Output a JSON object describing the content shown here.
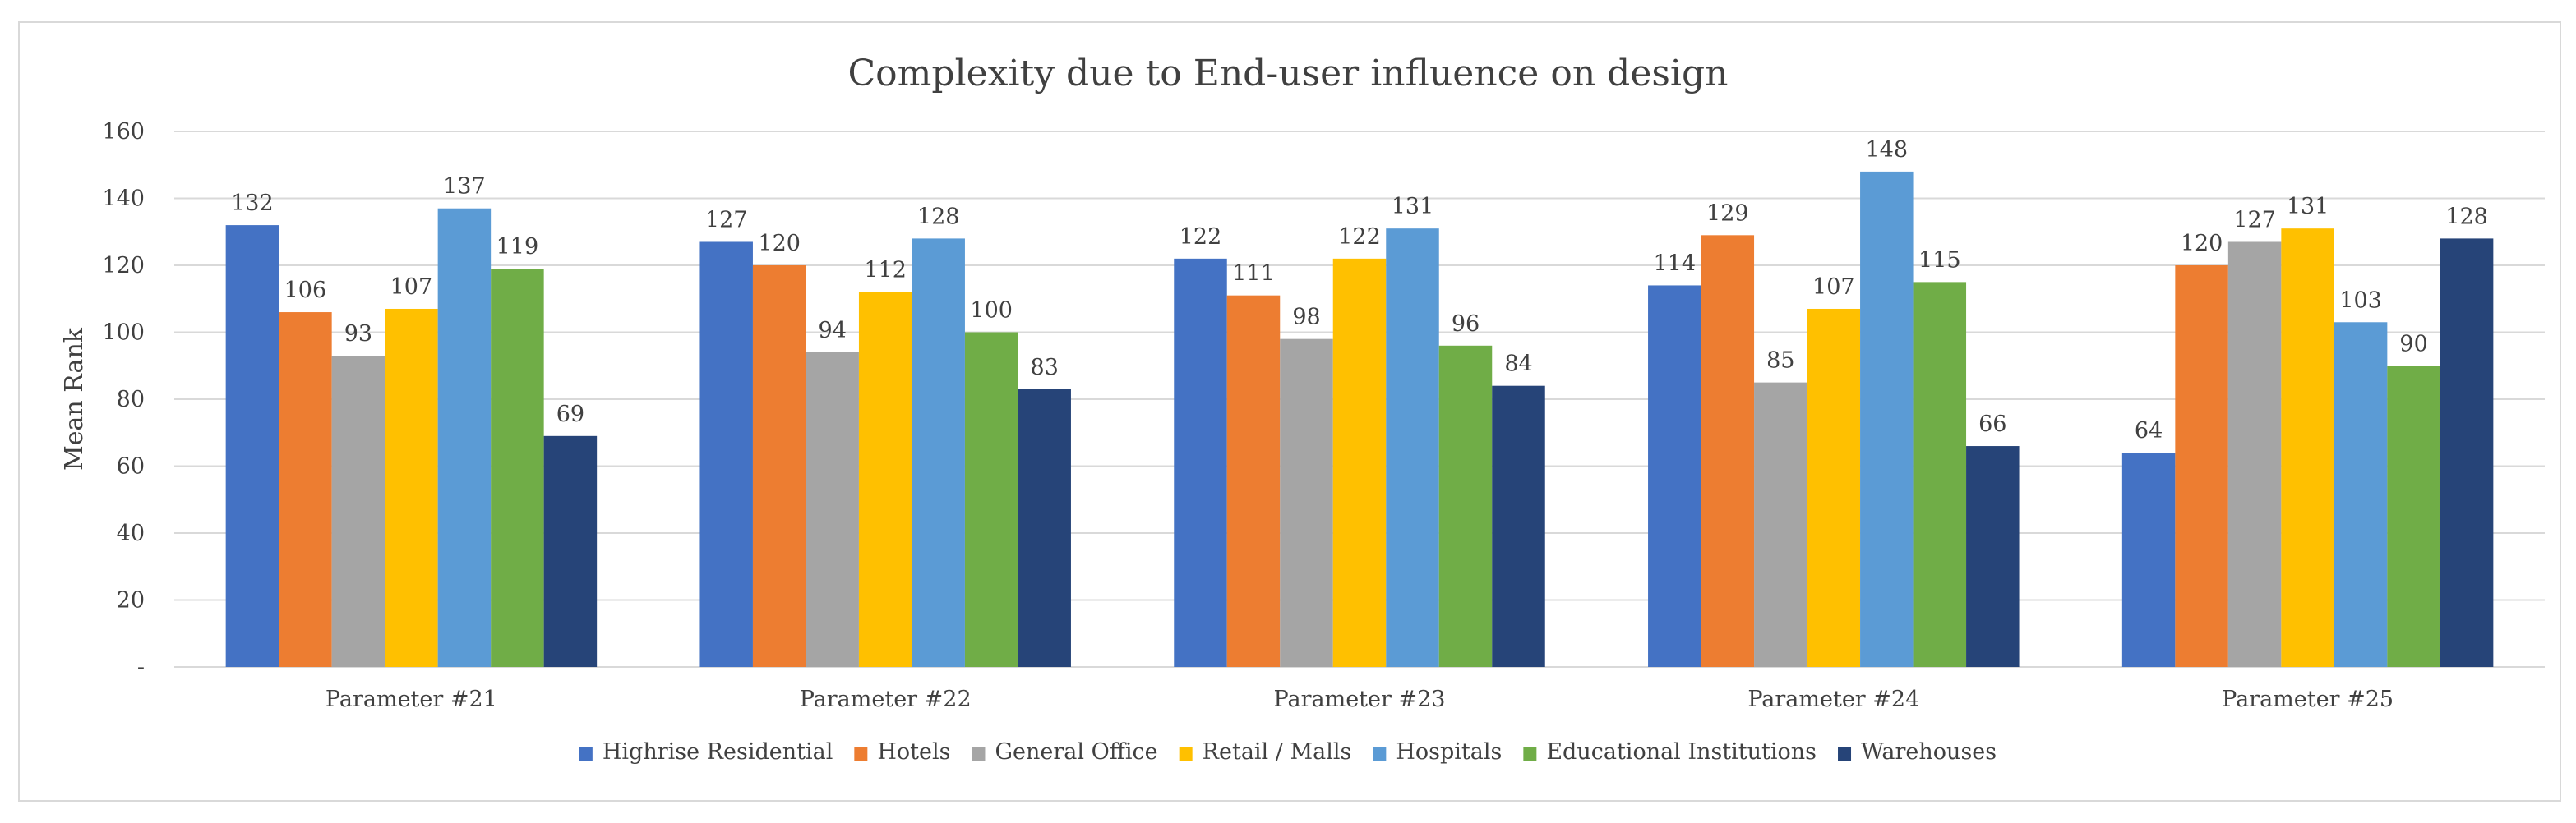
{
  "chart_data": {
    "type": "bar",
    "title": "Complexity due to End-user influence on design",
    "ylabel": "Mean Rank",
    "xlabel": "",
    "ylim": [
      0,
      160
    ],
    "yticks": [
      {
        "value": 0,
        "label": "-"
      },
      {
        "value": 20,
        "label": "20"
      },
      {
        "value": 40,
        "label": "40"
      },
      {
        "value": 60,
        "label": "60"
      },
      {
        "value": 80,
        "label": "80"
      },
      {
        "value": 100,
        "label": "100"
      },
      {
        "value": 120,
        "label": "120"
      },
      {
        "value": 140,
        "label": "140"
      },
      {
        "value": 160,
        "label": "160"
      }
    ],
    "grid": true,
    "legend_position": "bottom",
    "categories": [
      "Parameter #21",
      "Parameter #22",
      "Parameter #23",
      "Parameter #24",
      "Parameter #25"
    ],
    "series": [
      {
        "name": "Highrise Residential",
        "color": "#4472c4",
        "values": [
          132,
          127,
          122,
          114,
          64
        ]
      },
      {
        "name": "Hotels",
        "color": "#ed7d31",
        "values": [
          106,
          120,
          111,
          129,
          120
        ]
      },
      {
        "name": "General Office",
        "color": "#a5a5a5",
        "values": [
          93,
          94,
          98,
          85,
          127
        ]
      },
      {
        "name": "Retail / Malls",
        "color": "#ffc000",
        "values": [
          107,
          112,
          122,
          107,
          131
        ]
      },
      {
        "name": "Hospitals",
        "color": "#5b9bd5",
        "values": [
          137,
          128,
          131,
          148,
          103
        ]
      },
      {
        "name": "Educational Institutions",
        "color": "#70ad47",
        "values": [
          119,
          100,
          96,
          115,
          90
        ]
      },
      {
        "name": "Warehouses",
        "color": "#264478",
        "values": [
          69,
          83,
          84,
          66,
          128
        ]
      }
    ]
  }
}
